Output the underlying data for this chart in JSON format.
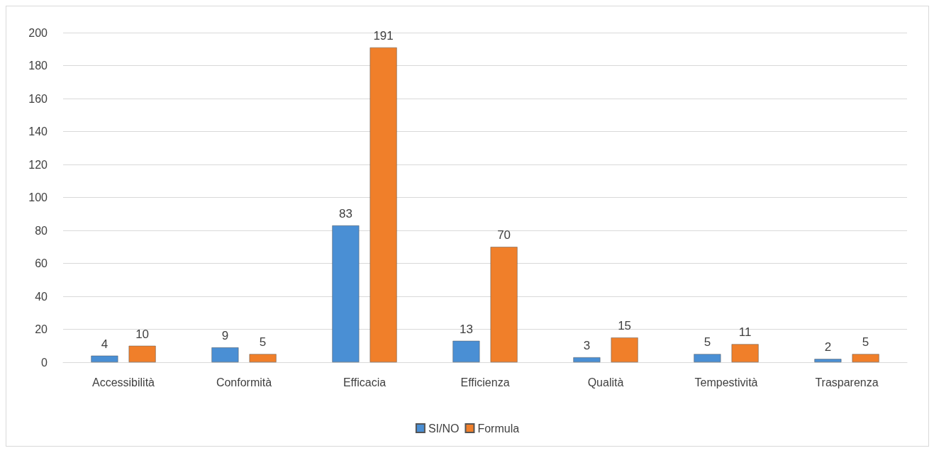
{
  "chart_data": {
    "type": "bar",
    "categories": [
      "Accessibilità",
      "Conformità",
      "Efficacia",
      "Efficienza",
      "Qualità",
      "Tempestività",
      "Trasparenza"
    ],
    "series": [
      {
        "name": "SI/NO",
        "color": "#4a8fd4",
        "values": [
          4,
          9,
          83,
          13,
          3,
          5,
          2
        ]
      },
      {
        "name": "Formula",
        "color": "#f07f2a",
        "values": [
          10,
          5,
          191,
          70,
          15,
          11,
          5
        ]
      }
    ],
    "ylim": [
      0,
      200
    ],
    "yticks": [
      0,
      20,
      40,
      60,
      80,
      100,
      120,
      140,
      160,
      180,
      200
    ],
    "grid": "y",
    "legend": "bottom",
    "data_labels": true
  }
}
